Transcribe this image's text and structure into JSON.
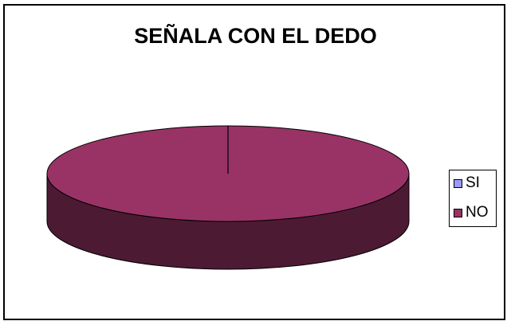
{
  "chart_data": {
    "type": "pie",
    "title": "SEÑALA CON EL DEDO",
    "categories": [
      "SI",
      "NO"
    ],
    "values": [
      0,
      100
    ],
    "colors": [
      "#9999ff",
      "#993366"
    ],
    "style": "3d",
    "legend_position": "right"
  }
}
